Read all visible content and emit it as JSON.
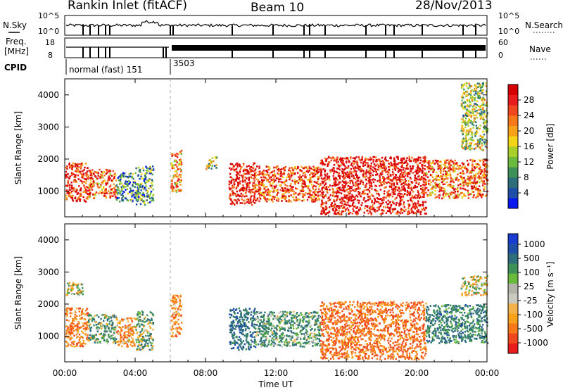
{
  "header": {
    "station": "Rankin Inlet (fitACF)",
    "beam": "Beam 10",
    "date": "28/Nov/2013"
  },
  "top_panels": {
    "nsky_label": "N.Sky",
    "nsearch_label": "N.Search",
    "noise_ticks": [
      "10^5",
      "10^0"
    ],
    "freq_label": "Freq.",
    "freq_unit": "[MHz]",
    "freq_ticks": [
      "18",
      "8"
    ],
    "nave_label": "Nave",
    "nave_ticks": [
      "60",
      "0"
    ],
    "cpid_label": "CPID",
    "cpid_segments": [
      {
        "label": "normal (fast) 151",
        "start_hour": 0,
        "end_hour": 6
      },
      {
        "label": "3503",
        "start_hour": 6,
        "end_hour": 24
      }
    ]
  },
  "x_axis": {
    "label": "Time UT",
    "ticks": [
      "00:00",
      "04:00",
      "08:00",
      "12:00",
      "16:00",
      "20:00",
      "00:00"
    ],
    "range_hours": [
      0,
      24
    ]
  },
  "colors": {
    "power_scale": [
      "#0a1aee",
      "#1f4fa8",
      "#2d6e7a",
      "#3e9158",
      "#6aba3c",
      "#a8cf2a",
      "#f3d418",
      "#f7a21a",
      "#f6781a",
      "#f0481e",
      "#e81c1c",
      "#d60000"
    ],
    "velocity_scale": [
      "#e81c1c",
      "#f0481e",
      "#f6781a",
      "#f7a21a",
      "#f3b24a",
      "#c9c9c0",
      "#b3b3aa",
      "#6aba3c",
      "#3e9158",
      "#2d6e7a",
      "#1f4fa8",
      "#1a3cd0"
    ]
  },
  "chart_data": [
    {
      "type": "heatmap",
      "name": "power",
      "ylabel": "Slant Range [km]",
      "yticks": [
        "1000",
        "2000",
        "3000",
        "4000"
      ],
      "ylim": [
        200,
        4500
      ],
      "colorbar_label": "Power [dB]",
      "colorbar_ticks": [
        "4",
        "8",
        "12",
        "16",
        "20",
        "24",
        "28"
      ],
      "colorbar_range": [
        0,
        32
      ],
      "scatter_bands": [
        {
          "start_hour": 0.0,
          "end_hour": 1.3,
          "range_min": 700,
          "range_max": 1900,
          "value": 28
        },
        {
          "start_hour": 1.3,
          "end_hour": 2.9,
          "range_min": 800,
          "range_max": 1700,
          "value": 24
        },
        {
          "start_hour": 2.9,
          "end_hour": 4.0,
          "range_min": 700,
          "range_max": 1600,
          "value": 8
        },
        {
          "start_hour": 4.0,
          "end_hour": 5.0,
          "range_min": 600,
          "range_max": 1800,
          "value": 10
        },
        {
          "start_hour": 6.0,
          "end_hour": 6.6,
          "range_min": 1000,
          "range_max": 2300,
          "value": 20
        },
        {
          "start_hour": 8.0,
          "end_hour": 8.6,
          "range_min": 1700,
          "range_max": 2100,
          "value": 14
        },
        {
          "start_hour": 9.3,
          "end_hour": 10.8,
          "range_min": 600,
          "range_max": 1900,
          "value": 30
        },
        {
          "start_hour": 10.8,
          "end_hour": 14.5,
          "range_min": 700,
          "range_max": 1800,
          "value": 26
        },
        {
          "start_hour": 14.5,
          "end_hour": 20.5,
          "range_min": 300,
          "range_max": 2100,
          "value": 30
        },
        {
          "start_hour": 20.5,
          "end_hour": 24.0,
          "range_min": 800,
          "range_max": 2000,
          "value": 24
        },
        {
          "start_hour": 22.5,
          "end_hour": 24.0,
          "range_min": 2300,
          "range_max": 4400,
          "value": 14
        }
      ]
    },
    {
      "type": "heatmap",
      "name": "velocity",
      "ylabel": "Slant Range [km]",
      "yticks": [
        "1000",
        "2000",
        "3000",
        "4000"
      ],
      "ylim": [
        200,
        4500
      ],
      "colorbar_label": "Velocity [m s⁻¹]",
      "colorbar_ticks": [
        "1000",
        "500",
        "100",
        "25",
        "-25",
        "-100",
        "-500",
        "-1000"
      ],
      "scatter_bands": [
        {
          "start_hour": 0.0,
          "end_hour": 1.3,
          "range_min": 700,
          "range_max": 1900,
          "value": -300
        },
        {
          "start_hour": 0.0,
          "end_hour": 1.0,
          "range_min": 2300,
          "range_max": 2700,
          "value": 0
        },
        {
          "start_hour": 1.3,
          "end_hour": 2.9,
          "range_min": 800,
          "range_max": 1700,
          "value": 150
        },
        {
          "start_hour": 2.9,
          "end_hour": 4.0,
          "range_min": 700,
          "range_max": 1600,
          "value": -200
        },
        {
          "start_hour": 4.0,
          "end_hour": 5.0,
          "range_min": 600,
          "range_max": 1800,
          "value": 120
        },
        {
          "start_hour": 6.0,
          "end_hour": 6.6,
          "range_min": 1000,
          "range_max": 2300,
          "value": -250
        },
        {
          "start_hour": 9.3,
          "end_hour": 10.8,
          "range_min": 600,
          "range_max": 1900,
          "value": 400
        },
        {
          "start_hour": 10.8,
          "end_hour": 14.5,
          "range_min": 700,
          "range_max": 1800,
          "value": 200
        },
        {
          "start_hour": 14.5,
          "end_hour": 20.5,
          "range_min": 300,
          "range_max": 2100,
          "value": -350
        },
        {
          "start_hour": 20.5,
          "end_hour": 24.0,
          "range_min": 800,
          "range_max": 2000,
          "value": 300
        },
        {
          "start_hour": 22.5,
          "end_hour": 24.0,
          "range_min": 2300,
          "range_max": 2900,
          "value": 0
        }
      ]
    }
  ]
}
